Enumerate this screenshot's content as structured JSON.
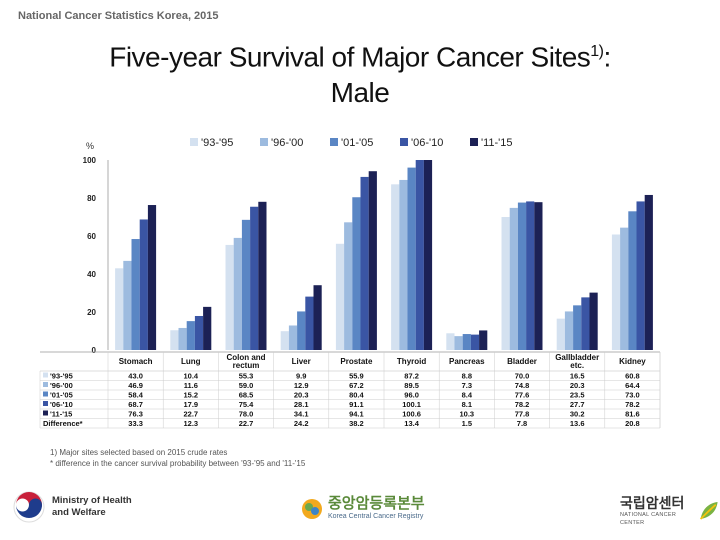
{
  "header_note": "National Cancer Statistics Korea, 2015",
  "title_main": "Five-year Survival of Major Cancer Sites",
  "title_sup": "1)",
  "title_suffix": ":",
  "title_line2": "Male",
  "chart_data": {
    "type": "bar",
    "ylabel": "%",
    "ylim": [
      0,
      100
    ],
    "yticks": [
      "0",
      "20",
      "40",
      "60",
      "80",
      "100"
    ],
    "categories": [
      "Stomach",
      "Lung",
      "Colon and rectum",
      "Liver",
      "Prostate",
      "Thyroid",
      "Pancreas",
      "Bladder",
      "Gallbladder etc.",
      "Kidney"
    ],
    "category_lines": [
      [
        "Stomach"
      ],
      [
        "Lung"
      ],
      [
        "Colon and",
        "rectum"
      ],
      [
        "Liver"
      ],
      [
        "Prostate"
      ],
      [
        "Thyroid"
      ],
      [
        "Pancreas"
      ],
      [
        "Bladder"
      ],
      [
        "Gallbladder",
        "etc."
      ],
      [
        "Kidney"
      ]
    ],
    "series": [
      {
        "name": "'93-'95",
        "color": "#d4e1f0",
        "values": [
          43.0,
          10.4,
          55.3,
          9.9,
          55.9,
          87.2,
          8.8,
          70.0,
          16.5,
          60.8
        ]
      },
      {
        "name": "'96-'00",
        "color": "#9dbbdf",
        "values": [
          46.9,
          11.6,
          59.0,
          12.9,
          67.2,
          89.5,
          7.3,
          74.8,
          20.3,
          64.4
        ]
      },
      {
        "name": "'01-'05",
        "color": "#5a86c4",
        "values": [
          58.4,
          15.2,
          68.5,
          20.3,
          80.4,
          96.0,
          8.4,
          77.6,
          23.5,
          73.0
        ]
      },
      {
        "name": "'06-'10",
        "color": "#3a55a4",
        "values": [
          68.7,
          17.9,
          75.4,
          28.1,
          91.1,
          100.1,
          8.1,
          78.2,
          27.7,
          78.2
        ]
      },
      {
        "name": "'11-'15",
        "color": "#1c2155",
        "values": [
          76.3,
          22.7,
          78.0,
          34.1,
          94.1,
          100.6,
          10.3,
          77.8,
          30.2,
          81.6
        ]
      }
    ],
    "table_rows": [
      {
        "label": "'93-'95",
        "values": [
          "43.0",
          "10.4",
          "55.3",
          "9.9",
          "55.9",
          "87.2",
          "8.8",
          "70.0",
          "16.5",
          "60.8"
        ]
      },
      {
        "label": "'96-'00",
        "values": [
          "46.9",
          "11.6",
          "59.0",
          "12.9",
          "67.2",
          "89.5",
          "7.3",
          "74.8",
          "20.3",
          "64.4"
        ]
      },
      {
        "label": "'01-'05",
        "values": [
          "58.4",
          "15.2",
          "68.5",
          "20.3",
          "80.4",
          "96.0",
          "8.4",
          "77.6",
          "23.5",
          "73.0"
        ]
      },
      {
        "label": "'06-'10",
        "values": [
          "68.7",
          "17.9",
          "75.4",
          "28.1",
          "91.1",
          "100.1",
          "8.1",
          "78.2",
          "27.7",
          "78.2"
        ]
      },
      {
        "label": "'11-'15",
        "values": [
          "76.3",
          "22.7",
          "78.0",
          "34.1",
          "94.1",
          "100.6",
          "10.3",
          "77.8",
          "30.2",
          "81.6"
        ]
      },
      {
        "label": "Difference*",
        "values": [
          "33.3",
          "12.3",
          "22.7",
          "24.2",
          "38.2",
          "13.4",
          "1.5",
          "7.8",
          "13.6",
          "20.8"
        ]
      }
    ]
  },
  "footnotes": [
    "1) Major sites selected based on 2015 crude rates",
    "* difference in the cancer survival probability between '93-'95 and '11-'15"
  ],
  "logos": {
    "ministry_line1": "Ministry of Health",
    "ministry_line2": "and Welfare",
    "kccr_line1": "중앙암등록본부",
    "kccr_line2": "Korea Central Cancer Registry",
    "ncc_line1": "국립암센터",
    "ncc_line2": "NATIONAL CANCER CENTER"
  }
}
